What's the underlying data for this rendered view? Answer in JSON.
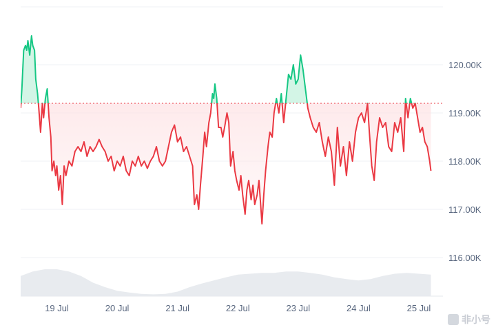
{
  "watermark": {
    "text": "非小号"
  },
  "chart_data": {
    "type": "line",
    "baseline": 119200,
    "ylim": [
      115200,
      121200
    ],
    "yticks": [
      116000,
      117000,
      118000,
      119000,
      120000
    ],
    "ytick_labels": [
      "116.00K",
      "117.00K",
      "118.00K",
      "119.00K",
      "120.00K"
    ],
    "xlim": [
      0,
      7.0
    ],
    "xticks": [
      0.6,
      1.6,
      2.6,
      3.6,
      4.6,
      5.6,
      6.6
    ],
    "xtick_labels": [
      "19 Jul",
      "20 Jul",
      "21 Jul",
      "22 Jul",
      "23 Jul",
      "24 Jul",
      "25 Jul"
    ],
    "colors": {
      "up": "#16c784",
      "down": "#ea3943",
      "up_fill": "#d3f5e6",
      "down_fill": "#fde1e3",
      "volume": "#e8ebef",
      "baseline": "#ea3943"
    },
    "price": [
      [
        0.0,
        119100
      ],
      [
        0.02,
        119500
      ],
      [
        0.05,
        120300
      ],
      [
        0.08,
        120400
      ],
      [
        0.1,
        120300
      ],
      [
        0.12,
        120500
      ],
      [
        0.15,
        120200
      ],
      [
        0.18,
        120600
      ],
      [
        0.2,
        120400
      ],
      [
        0.23,
        120300
      ],
      [
        0.25,
        119700
      ],
      [
        0.28,
        119400
      ],
      [
        0.3,
        119100
      ],
      [
        0.33,
        118600
      ],
      [
        0.36,
        119200
      ],
      [
        0.38,
        118900
      ],
      [
        0.41,
        119300
      ],
      [
        0.44,
        119500
      ],
      [
        0.47,
        118900
      ],
      [
        0.5,
        118500
      ],
      [
        0.52,
        117800
      ],
      [
        0.55,
        118000
      ],
      [
        0.58,
        117700
      ],
      [
        0.6,
        117900
      ],
      [
        0.63,
        117400
      ],
      [
        0.66,
        117700
      ],
      [
        0.69,
        117100
      ],
      [
        0.72,
        117900
      ],
      [
        0.75,
        117700
      ],
      [
        0.8,
        118000
      ],
      [
        0.85,
        117900
      ],
      [
        0.9,
        118200
      ],
      [
        0.95,
        118300
      ],
      [
        1.0,
        118200
      ],
      [
        1.05,
        118400
      ],
      [
        1.1,
        118100
      ],
      [
        1.15,
        118300
      ],
      [
        1.2,
        118200
      ],
      [
        1.25,
        118300
      ],
      [
        1.3,
        118450
      ],
      [
        1.35,
        118300
      ],
      [
        1.4,
        118200
      ],
      [
        1.45,
        118000
      ],
      [
        1.5,
        118100
      ],
      [
        1.55,
        117800
      ],
      [
        1.6,
        118000
      ],
      [
        1.65,
        117900
      ],
      [
        1.7,
        118100
      ],
      [
        1.75,
        117800
      ],
      [
        1.8,
        117700
      ],
      [
        1.85,
        118000
      ],
      [
        1.9,
        117900
      ],
      [
        1.95,
        118100
      ],
      [
        2.0,
        117900
      ],
      [
        2.05,
        118000
      ],
      [
        2.1,
        117850
      ],
      [
        2.15,
        118000
      ],
      [
        2.2,
        118100
      ],
      [
        2.25,
        118300
      ],
      [
        2.3,
        118000
      ],
      [
        2.35,
        117900
      ],
      [
        2.4,
        118000
      ],
      [
        2.45,
        118300
      ],
      [
        2.5,
        118600
      ],
      [
        2.55,
        118750
      ],
      [
        2.6,
        118400
      ],
      [
        2.65,
        118500
      ],
      [
        2.7,
        118200
      ],
      [
        2.75,
        118300
      ],
      [
        2.8,
        118100
      ],
      [
        2.85,
        117900
      ],
      [
        2.88,
        117100
      ],
      [
        2.92,
        117300
      ],
      [
        2.95,
        117000
      ],
      [
        2.98,
        117500
      ],
      [
        3.02,
        118100
      ],
      [
        3.05,
        118600
      ],
      [
        3.08,
        118300
      ],
      [
        3.12,
        118800
      ],
      [
        3.15,
        119000
      ],
      [
        3.18,
        119400
      ],
      [
        3.2,
        119300
      ],
      [
        3.22,
        119600
      ],
      [
        3.25,
        119300
      ],
      [
        3.28,
        118700
      ],
      [
        3.32,
        118700
      ],
      [
        3.35,
        118500
      ],
      [
        3.38,
        118700
      ],
      [
        3.42,
        119000
      ],
      [
        3.45,
        118800
      ],
      [
        3.48,
        117900
      ],
      [
        3.52,
        118200
      ],
      [
        3.55,
        117800
      ],
      [
        3.58,
        117600
      ],
      [
        3.62,
        117400
      ],
      [
        3.65,
        117700
      ],
      [
        3.68,
        117300
      ],
      [
        3.72,
        116900
      ],
      [
        3.75,
        117400
      ],
      [
        3.78,
        117600
      ],
      [
        3.82,
        117200
      ],
      [
        3.85,
        117500
      ],
      [
        3.88,
        117100
      ],
      [
        3.92,
        117300
      ],
      [
        3.95,
        117600
      ],
      [
        4.0,
        116700
      ],
      [
        4.03,
        117300
      ],
      [
        4.06,
        117800
      ],
      [
        4.1,
        118300
      ],
      [
        4.13,
        118600
      ],
      [
        4.17,
        118500
      ],
      [
        4.2,
        119000
      ],
      [
        4.24,
        119300
      ],
      [
        4.28,
        119000
      ],
      [
        4.32,
        119400
      ],
      [
        4.36,
        118800
      ],
      [
        4.4,
        119300
      ],
      [
        4.44,
        119800
      ],
      [
        4.48,
        119700
      ],
      [
        4.52,
        120000
      ],
      [
        4.56,
        119600
      ],
      [
        4.6,
        119700
      ],
      [
        4.64,
        120200
      ],
      [
        4.68,
        119900
      ],
      [
        4.72,
        119500
      ],
      [
        4.76,
        119100
      ],
      [
        4.8,
        118900
      ],
      [
        4.85,
        118700
      ],
      [
        4.9,
        118600
      ],
      [
        4.95,
        118800
      ],
      [
        5.0,
        118400
      ],
      [
        5.05,
        118100
      ],
      [
        5.1,
        118500
      ],
      [
        5.15,
        118200
      ],
      [
        5.2,
        117500
      ],
      [
        5.25,
        118700
      ],
      [
        5.3,
        117900
      ],
      [
        5.35,
        118300
      ],
      [
        5.4,
        117700
      ],
      [
        5.45,
        118400
      ],
      [
        5.5,
        118000
      ],
      [
        5.55,
        118600
      ],
      [
        5.6,
        118900
      ],
      [
        5.65,
        119000
      ],
      [
        5.7,
        118800
      ],
      [
        5.75,
        119200
      ],
      [
        5.78,
        118600
      ],
      [
        5.82,
        117900
      ],
      [
        5.86,
        117600
      ],
      [
        5.9,
        118400
      ],
      [
        5.95,
        118900
      ],
      [
        6.0,
        118700
      ],
      [
        6.05,
        118800
      ],
      [
        6.1,
        118300
      ],
      [
        6.15,
        118200
      ],
      [
        6.2,
        118800
      ],
      [
        6.25,
        118600
      ],
      [
        6.3,
        118900
      ],
      [
        6.35,
        118200
      ],
      [
        6.38,
        119300
      ],
      [
        6.42,
        118900
      ],
      [
        6.46,
        119300
      ],
      [
        6.5,
        119100
      ],
      [
        6.54,
        119200
      ],
      [
        6.58,
        118900
      ],
      [
        6.62,
        118600
      ],
      [
        6.66,
        118700
      ],
      [
        6.7,
        118400
      ],
      [
        6.74,
        118300
      ],
      [
        6.78,
        118000
      ],
      [
        6.8,
        117800
      ]
    ],
    "volume": [
      [
        0.0,
        0.45
      ],
      [
        0.2,
        0.55
      ],
      [
        0.4,
        0.6
      ],
      [
        0.6,
        0.6
      ],
      [
        0.8,
        0.55
      ],
      [
        1.0,
        0.45
      ],
      [
        1.2,
        0.3
      ],
      [
        1.4,
        0.2
      ],
      [
        1.6,
        0.12
      ],
      [
        1.8,
        0.08
      ],
      [
        2.0,
        0.05
      ],
      [
        2.2,
        0.04
      ],
      [
        2.4,
        0.05
      ],
      [
        2.6,
        0.1
      ],
      [
        2.8,
        0.2
      ],
      [
        3.0,
        0.28
      ],
      [
        3.2,
        0.35
      ],
      [
        3.4,
        0.42
      ],
      [
        3.6,
        0.48
      ],
      [
        3.8,
        0.5
      ],
      [
        4.0,
        0.52
      ],
      [
        4.2,
        0.52
      ],
      [
        4.4,
        0.55
      ],
      [
        4.6,
        0.55
      ],
      [
        4.8,
        0.52
      ],
      [
        5.0,
        0.48
      ],
      [
        5.2,
        0.42
      ],
      [
        5.4,
        0.38
      ],
      [
        5.6,
        0.35
      ],
      [
        5.8,
        0.38
      ],
      [
        6.0,
        0.45
      ],
      [
        6.2,
        0.5
      ],
      [
        6.4,
        0.52
      ],
      [
        6.6,
        0.5
      ],
      [
        6.8,
        0.48
      ]
    ]
  }
}
